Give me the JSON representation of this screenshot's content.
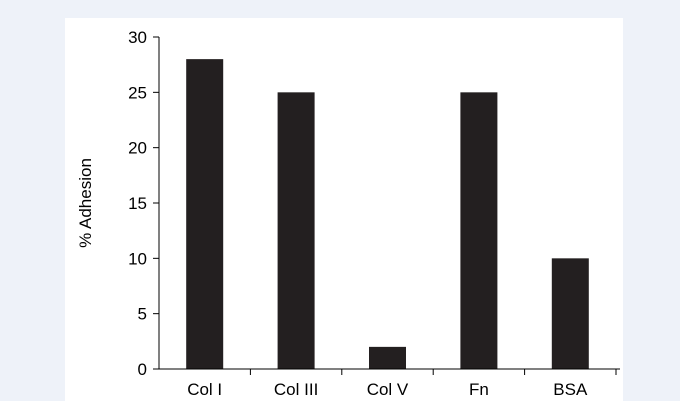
{
  "colors": {
    "page_background": "#eef2f9",
    "plot_background": "#ffffff",
    "bar_fill": "#231f20",
    "axis": "#000000"
  },
  "chart_data": {
    "type": "bar",
    "title": "",
    "xlabel": "",
    "ylabel": "% Adhesion",
    "categories": [
      "Col I",
      "Col III",
      "Col V",
      "Fn",
      "BSA"
    ],
    "values": [
      28,
      25,
      2,
      25,
      10
    ],
    "ylim": [
      0,
      30
    ],
    "yticks": [
      "0",
      "5",
      "10",
      "15",
      "20",
      "25",
      "30"
    ],
    "grid": false,
    "legend": "none"
  }
}
